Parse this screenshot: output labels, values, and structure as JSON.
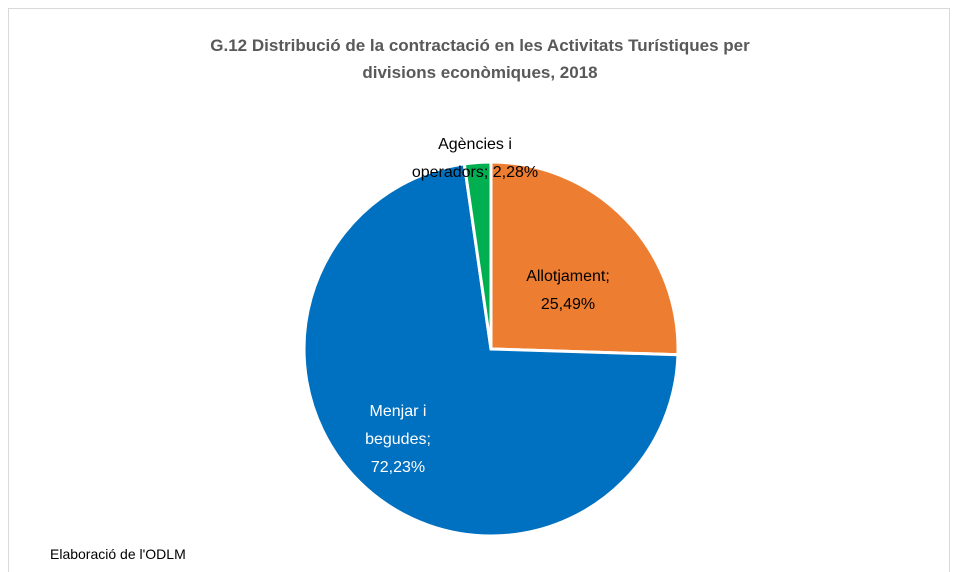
{
  "chart_data": {
    "type": "pie",
    "title": "G.12 Distribució de la contractació en les Activitats Turístiques per divisions econòmiques, 2018",
    "categories": [
      "Allotjament",
      "Menjar i begudes",
      "Agències i operadors"
    ],
    "values": [
      25.49,
      72.23,
      2.28
    ],
    "value_labels": [
      "25,49%",
      "72,23%",
      "2,28%"
    ],
    "label_separator": ";",
    "colors": [
      "#ED7D31",
      "#0070C0",
      "#00B050"
    ],
    "source": "Elaboració de l'ODLM"
  }
}
